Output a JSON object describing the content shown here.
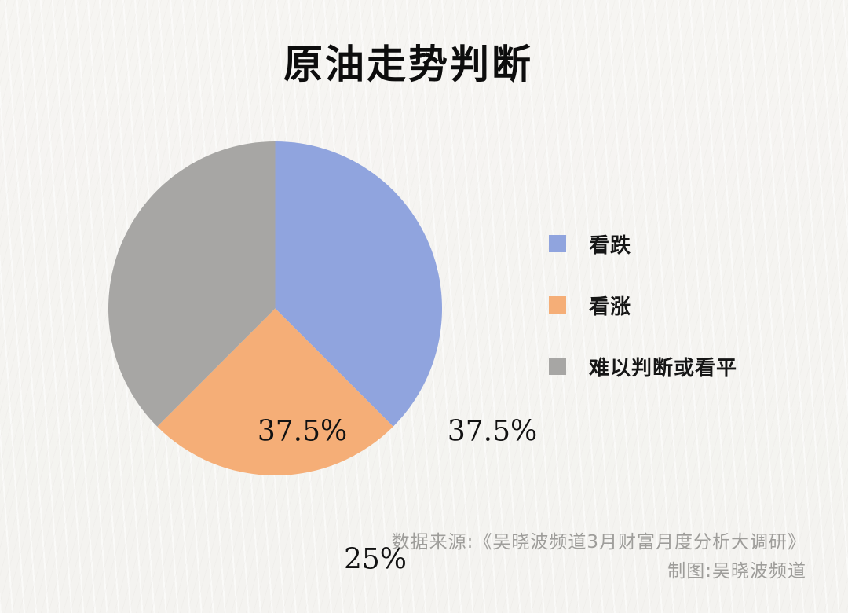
{
  "chart_data": {
    "type": "pie",
    "title": "原油走势判断",
    "start_angle": "12-oclock",
    "direction": "clockwise",
    "legend_position": "right",
    "slices": [
      {
        "name": "看跌",
        "value": 37.5,
        "label": "37.5%",
        "color": "#90a4de"
      },
      {
        "name": "看涨",
        "value": 25,
        "label": "25%",
        "color": "#f5ae77"
      },
      {
        "name": "难以判断或看平",
        "value": 37.5,
        "label": "37.5%",
        "color": "#a7a6a4"
      }
    ],
    "source_line": "数据来源:《吴晓波频道3月财富月度分析大调研》",
    "credit_line": "制图:吴晓波频道"
  },
  "colors": {
    "background": "#f5f4f1",
    "title_text": "#0d0d0d",
    "slice_label_text": "#121212",
    "legend_text": "#161616",
    "footer_text": "#9e9d9a"
  }
}
